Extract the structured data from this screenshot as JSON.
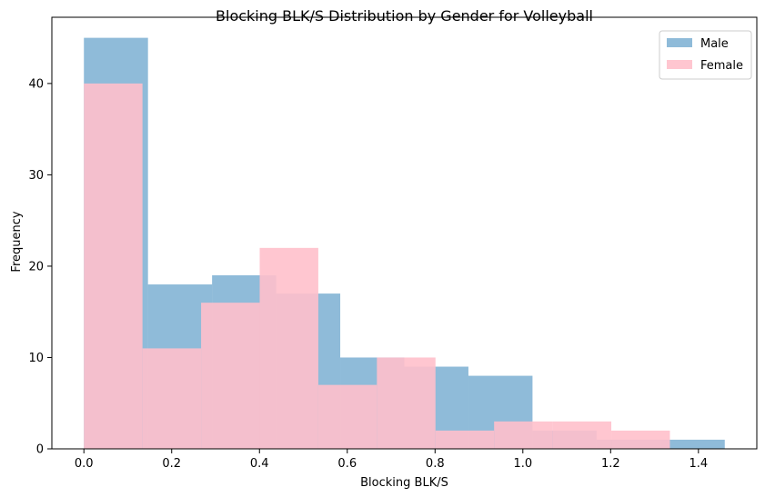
{
  "chart_data": {
    "type": "bar",
    "title": "Blocking BLK/S Distribution by Gender for Volleyball",
    "xlabel": "Blocking BLK/S",
    "ylabel": "Frequency",
    "xlim": [
      -0.073,
      1.533
    ],
    "ylim": [
      0,
      47.25
    ],
    "xticks": [
      "0.0",
      "0.2",
      "0.4",
      "0.6",
      "0.8",
      "1.0",
      "1.2",
      "1.4"
    ],
    "yticks": [
      "0",
      "10",
      "20",
      "30",
      "40"
    ],
    "grid": false,
    "legend": "top-right",
    "series": [
      {
        "name": "Male",
        "color": "#1f77b4",
        "opacity": 0.5,
        "bins": [
          {
            "x0": 0.0,
            "x1": 0.146,
            "count": 45
          },
          {
            "x0": 0.146,
            "x1": 0.292,
            "count": 18
          },
          {
            "x0": 0.292,
            "x1": 0.438,
            "count": 19
          },
          {
            "x0": 0.438,
            "x1": 0.584,
            "count": 17
          },
          {
            "x0": 0.584,
            "x1": 0.73,
            "count": 10
          },
          {
            "x0": 0.73,
            "x1": 0.876,
            "count": 9
          },
          {
            "x0": 0.876,
            "x1": 1.022,
            "count": 8
          },
          {
            "x0": 1.022,
            "x1": 1.168,
            "count": 2
          },
          {
            "x0": 1.168,
            "x1": 1.314,
            "count": 1
          },
          {
            "x0": 1.314,
            "x1": 1.46,
            "count": 1
          }
        ]
      },
      {
        "name": "Female",
        "color": "#ffc0cb",
        "opacity": 0.9,
        "bins": [
          {
            "x0": 0.0,
            "x1": 0.1335,
            "count": 40
          },
          {
            "x0": 0.1335,
            "x1": 0.267,
            "count": 11
          },
          {
            "x0": 0.267,
            "x1": 0.4005,
            "count": 16
          },
          {
            "x0": 0.4005,
            "x1": 0.534,
            "count": 22
          },
          {
            "x0": 0.534,
            "x1": 0.6675,
            "count": 7
          },
          {
            "x0": 0.6675,
            "x1": 0.801,
            "count": 10
          },
          {
            "x0": 0.801,
            "x1": 0.9345,
            "count": 2
          },
          {
            "x0": 0.9345,
            "x1": 1.068,
            "count": 3
          },
          {
            "x0": 1.068,
            "x1": 1.2015,
            "count": 3
          },
          {
            "x0": 1.2015,
            "x1": 1.335,
            "count": 2
          }
        ]
      }
    ]
  }
}
